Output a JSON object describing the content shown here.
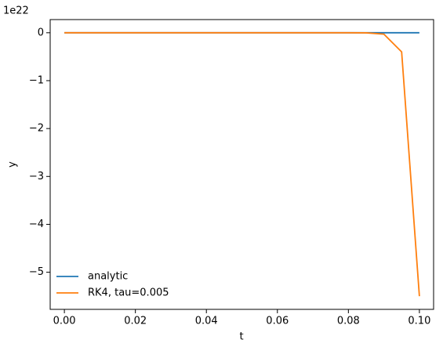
{
  "chart_data": {
    "type": "line",
    "x_label": "t",
    "y_label": "y",
    "y_offset_label": "1e22",
    "x": [
      0,
      0.005,
      0.01,
      0.015,
      0.02,
      0.025,
      0.03,
      0.035,
      0.04,
      0.045,
      0.05,
      0.055,
      0.06,
      0.065,
      0.07,
      0.075,
      0.08,
      0.085,
      0.09,
      0.095,
      0.1
    ],
    "series": [
      {
        "name": "analytic",
        "color": "#1f77b4",
        "values": [
          0,
          0,
          0,
          0,
          0,
          0,
          0,
          0,
          0,
          0,
          0,
          0,
          0,
          0,
          0,
          0,
          0,
          0,
          0,
          0,
          0
        ]
      },
      {
        "name": "RK4, tau=0.005",
        "color": "#ff7f0e",
        "values": [
          0,
          0,
          0,
          0,
          0,
          0,
          0,
          0,
          0,
          0,
          0,
          0,
          0,
          0,
          0,
          0,
          0,
          -0.002,
          -0.03,
          -0.4,
          -5.5
        ]
      }
    ],
    "xlim": [
      -0.004,
      0.104
    ],
    "xticks": [
      {
        "value": 0,
        "label": "0.00"
      },
      {
        "value": 0.02,
        "label": "0.02"
      },
      {
        "value": 0.04,
        "label": "0.04"
      },
      {
        "value": 0.06,
        "label": "0.06"
      },
      {
        "value": 0.08,
        "label": "0.08"
      },
      {
        "value": 0.1,
        "label": "0.10"
      }
    ],
    "ylim": [
      -5.775,
      0.275
    ],
    "yticks": [
      0,
      {
        "value": -1,
        "label": "−1"
      },
      {
        "value": -2,
        "label": "−2"
      },
      {
        "value": -3,
        "label": "−3"
      },
      {
        "value": -4,
        "label": "−4"
      },
      {
        "value": -5,
        "label": "−5"
      }
    ],
    "legend": "lower left",
    "grid": false
  }
}
